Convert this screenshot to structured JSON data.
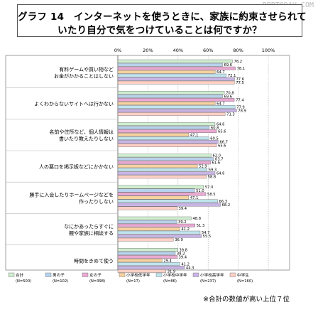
{
  "watermark": "RBBTODAY.COM",
  "title_line1": "グラフ 14　インターネットを使うときに、家族に約束させられて",
  "title_line2": "いたり自分で気をつけていることは何ですか？",
  "footnote": "※合計の数値が高い上位７位",
  "chart_data": {
    "type": "bar",
    "orientation": "horizontal",
    "xlim": [
      0,
      100
    ],
    "x_ticks": [
      "0%",
      "20%",
      "40%",
      "60%",
      "80%",
      "100%"
    ],
    "grid": "vertical dotted",
    "legend_position": "bottom",
    "categories": [
      [
        "有料ゲームや買い物など",
        "お金がかかることはしない"
      ],
      [
        "よくわからないサイトへは行かない"
      ],
      [
        "名前や住所など、個人情報は",
        "書いたり教えたりしない"
      ],
      [
        "人の悪口を掲示板などにかかない"
      ],
      [
        "勝手に入会したりホームページなどを",
        "作ったりしない"
      ],
      [
        "なにかあったらすぐに",
        "親や家族に相談する"
      ],
      [
        "時間をきめて使う"
      ]
    ],
    "series": [
      {
        "name": "合計",
        "n": "(N=500)",
        "color": "#cfeecf",
        "values": [
          76.2,
          70.8,
          64.6,
          62.0,
          57.0,
          48.8,
          39.8
        ]
      },
      {
        "name": "男の子",
        "n": "(N=102)",
        "color": "#b8d2ec",
        "values": [
          69.6,
          69.6,
          60.8,
          63.7,
          51.0,
          39.2,
          38.2
        ]
      },
      {
        "name": "女の子",
        "n": "(N=398)",
        "color": "#e9a8d2",
        "values": [
          78.1,
          77.4,
          65.6,
          61.6,
          58.5,
          51.3,
          39.4
        ]
      },
      {
        "name": "小学校低学年",
        "n": "(N=17)",
        "color": "#f7d29f",
        "values": [
          64.7,
          64.7,
          47.1,
          52.9,
          47.1,
          41.2,
          29.4
        ]
      },
      {
        "name": "小学校中学年",
        "n": "(N=86)",
        "color": "#c0e4ee",
        "values": [
          72.1,
          77.9,
          60.5,
          59.3,
          66.3,
          54.7,
          41.2
        ]
      },
      {
        "name": "小学校高学年",
        "n": "(N=237)",
        "color": "#c9b4e6",
        "values": [
          77.6,
          78.9,
          66.7,
          64.6,
          68.2,
          55.5,
          44.3
        ]
      },
      {
        "name": "中学生",
        "n": "(N=160)",
        "color": "#ffd0c6",
        "values": [
          77.5,
          71.3,
          65.6,
          58.8,
          39.4,
          36.9,
          31.9
        ]
      }
    ]
  }
}
